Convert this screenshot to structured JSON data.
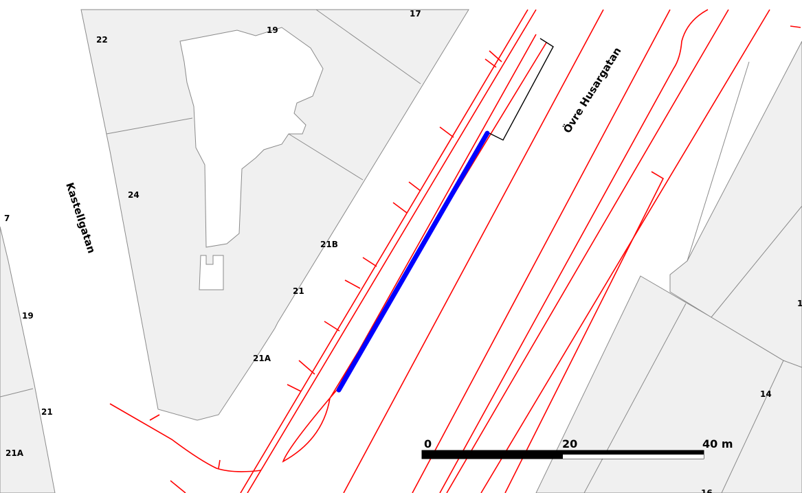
{
  "map": {
    "colors": {
      "parcel_fill": "#f0f0f0",
      "parcel_stroke": "#8a8a8a",
      "building_fill": "#ffffff",
      "road_line": "#ff0000",
      "highlight": "#0000ff",
      "outline": "#000000"
    },
    "streets": {
      "kastellgatan": "Kastellgatan",
      "ovre_husargatan": "Övre Husargatan"
    },
    "parcels": {
      "p17": "17",
      "p19": "19",
      "p22": "22",
      "p24": "24",
      "p21b": "21B",
      "p21": "21",
      "p21a": "21A",
      "p7": "7",
      "p19_left": "19",
      "p21_left": "21",
      "p21a_left": "21A",
      "p14": "14",
      "p16": "16",
      "p1_right": "1"
    },
    "scalebar": {
      "label_0": "0",
      "label_20": "20",
      "label_40": "40 m"
    }
  }
}
